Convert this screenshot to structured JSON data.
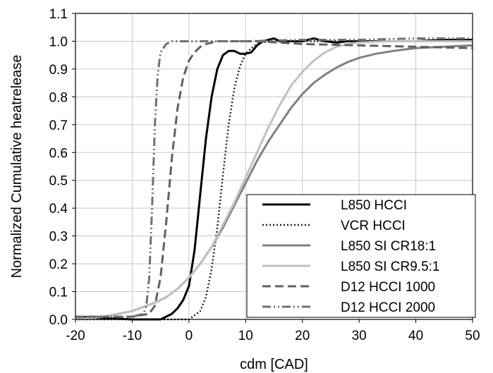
{
  "chart_data": {
    "type": "line",
    "title": "",
    "xlabel": "cdm [CAD]",
    "ylabel": "Normalized Cumulative heatrelease",
    "xlim": [
      -20,
      50
    ],
    "ylim": [
      0,
      1.1
    ],
    "xticks": [
      "-20",
      "-10",
      "0",
      "10",
      "20",
      "30",
      "40",
      "50"
    ],
    "yticks": [
      "0.0",
      "0.1",
      "0.2",
      "0.3",
      "0.4",
      "0.5",
      "0.6",
      "0.7",
      "0.8",
      "0.9",
      "1.0",
      "1.1"
    ],
    "grid": true,
    "legend_position": "bottom-right",
    "series": [
      {
        "name": "L850 HCCI",
        "color": "#000000",
        "dash": "solid",
        "x": [
          -20,
          -10,
          -5,
          -3,
          -2,
          -1,
          0,
          1,
          2,
          3,
          4,
          5,
          6,
          7,
          8,
          9,
          10,
          11,
          12,
          13,
          14,
          15,
          16,
          18,
          20,
          22,
          24,
          26,
          28,
          30,
          35,
          40,
          45,
          50
        ],
        "y": [
          0.01,
          0.0,
          0.0,
          0.02,
          0.04,
          0.07,
          0.12,
          0.25,
          0.45,
          0.65,
          0.8,
          0.9,
          0.95,
          0.965,
          0.965,
          0.955,
          0.955,
          0.96,
          0.985,
          1.0,
          1.005,
          1.01,
          1.0,
          1.0,
          1.0,
          1.01,
          1.0,
          0.995,
          1.0,
          1.0,
          1.0,
          1.0,
          1.005,
          1.005
        ]
      },
      {
        "name": "VCR HCCI",
        "color": "#222222",
        "dash": "dotted",
        "x": [
          -20,
          -5,
          0,
          2,
          3,
          4,
          5,
          6,
          7,
          8,
          9,
          10,
          11,
          12,
          14,
          16,
          20,
          30,
          40,
          50
        ],
        "y": [
          0.0,
          0.0,
          0.0,
          0.03,
          0.08,
          0.18,
          0.33,
          0.52,
          0.7,
          0.83,
          0.91,
          0.955,
          0.975,
          0.99,
          1.0,
          1.0,
          1.0,
          1.0,
          1.0,
          1.0
        ]
      },
      {
        "name": "L850 SI CR18:1",
        "color": "#808080",
        "dash": "solid",
        "x": [
          -20,
          -15,
          -10,
          -6,
          -4,
          -2,
          0,
          2,
          4,
          6,
          8,
          10,
          12,
          14,
          16,
          18,
          20,
          22,
          24,
          26,
          28,
          30,
          33,
          36,
          40,
          45,
          50
        ],
        "y": [
          0.0,
          0.01,
          0.03,
          0.06,
          0.08,
          0.11,
          0.15,
          0.2,
          0.26,
          0.33,
          0.41,
          0.49,
          0.57,
          0.64,
          0.7,
          0.76,
          0.81,
          0.85,
          0.88,
          0.905,
          0.925,
          0.94,
          0.955,
          0.965,
          0.975,
          0.98,
          0.985
        ]
      },
      {
        "name": "L850 SI CR9.5:1",
        "color": "#c0c0c0",
        "dash": "solid",
        "x": [
          -20,
          -15,
          -10,
          -6,
          -4,
          -2,
          0,
          2,
          4,
          6,
          8,
          10,
          12,
          14,
          16,
          18,
          20,
          22,
          24,
          26,
          28,
          30,
          35,
          40,
          45,
          50
        ],
        "y": [
          0.0,
          0.01,
          0.03,
          0.06,
          0.08,
          0.11,
          0.15,
          0.2,
          0.26,
          0.34,
          0.42,
          0.51,
          0.6,
          0.69,
          0.77,
          0.84,
          0.89,
          0.93,
          0.96,
          0.98,
          0.99,
          0.995,
          1.0,
          1.0,
          1.0,
          1.0
        ]
      },
      {
        "name": "D12 HCCI 1000",
        "color": "#606060",
        "dash": "dashed",
        "x": [
          -20,
          -10,
          -7,
          -6,
          -5,
          -4,
          -3,
          -2,
          -1,
          0,
          1,
          2,
          3,
          5,
          8,
          12,
          20,
          30,
          40,
          50
        ],
        "y": [
          0.01,
          0.01,
          0.02,
          0.05,
          0.15,
          0.35,
          0.58,
          0.76,
          0.87,
          0.93,
          0.96,
          0.98,
          0.99,
          1.0,
          1.0,
          1.0,
          0.99,
          0.985,
          0.98,
          0.975
        ]
      },
      {
        "name": "D12 HCCI 2000",
        "color": "#707070",
        "dash": "dashdotdot",
        "x": [
          -20,
          -10,
          -8,
          -7.5,
          -7,
          -6.5,
          -6,
          -5.5,
          -5,
          -4,
          -3,
          -2,
          0,
          5,
          10,
          20,
          30,
          40,
          50
        ],
        "y": [
          0.01,
          0.01,
          0.02,
          0.05,
          0.15,
          0.4,
          0.7,
          0.88,
          0.96,
          0.99,
          1.0,
          1.0,
          1.0,
          1.0,
          1.0,
          1.005,
          1.005,
          1.01,
          1.01
        ]
      }
    ]
  }
}
